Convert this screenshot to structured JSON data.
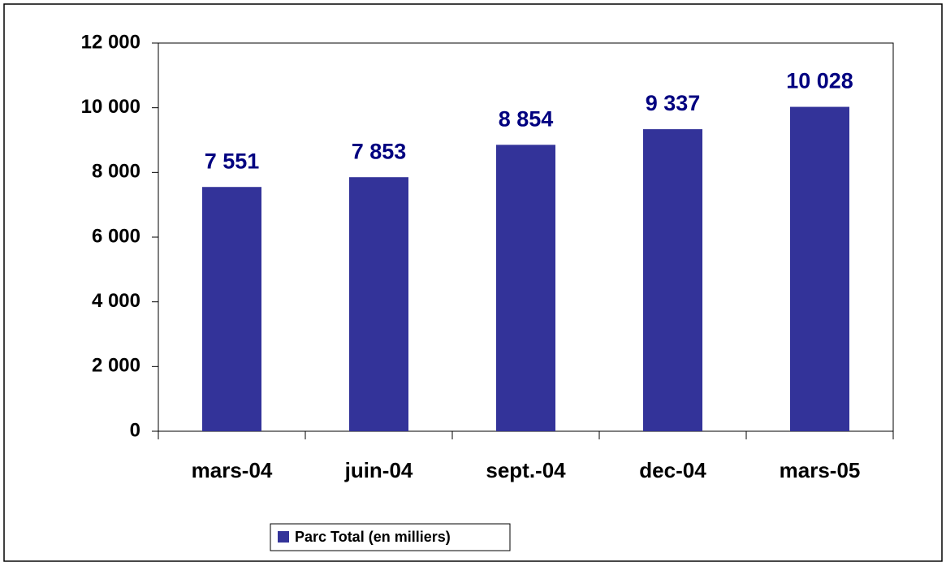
{
  "chart_data": {
    "type": "bar",
    "categories": [
      "mars-04",
      "juin-04",
      "sept.-04",
      "dec-04",
      "mars-05"
    ],
    "series": [
      {
        "name": "Parc Total (en milliers)",
        "color": "#333399",
        "values": [
          7551,
          7853,
          8854,
          9337,
          10028
        ],
        "value_labels": [
          "7 551",
          "7 853",
          "8 854",
          "9 337",
          "10 028"
        ]
      }
    ],
    "ylim": [
      0,
      12000
    ],
    "yticks": [
      0,
      {
        "value": 2000,
        "label": "2 000"
      },
      {
        "value": 4000,
        "label": "4 000"
      },
      {
        "value": 6000,
        "label": "6 000"
      },
      {
        "value": 8000,
        "label": "8 000"
      },
      {
        "value": 10000,
        "label": "10 000"
      },
      {
        "value": 12000,
        "label": "12 000"
      }
    ],
    "grid": false,
    "legend": "bottom"
  }
}
